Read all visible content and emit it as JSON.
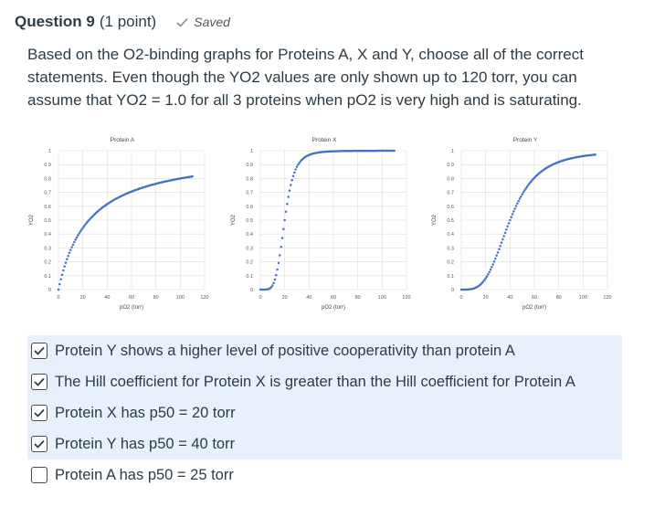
{
  "question": {
    "title": "Question 9",
    "points": "(1 point)",
    "saved_label": "Saved",
    "text": "Based on the O2-binding graphs for Proteins A, X and Y, choose all of the correct statements. Even though the YO2 values are only shown up to 120 torr, you can assume that YO2 = 1.0 for all 3 proteins when pO2 is very high and is saturating."
  },
  "chart_data": [
    {
      "type": "scatter",
      "title": "Protein A",
      "xlabel": "pO2 (torr)",
      "ylabel": "YO2",
      "xlim": [
        0,
        120
      ],
      "ylim": [
        0,
        1
      ],
      "xticks": [
        "0",
        "20",
        "40",
        "60",
        "80",
        "100",
        "120"
      ],
      "yticks": [
        "0",
        "0.1",
        "0.2",
        "0.3",
        "0.4",
        "0.5",
        "0.6",
        "0.7",
        "0.8",
        "0.9",
        "1"
      ],
      "grid": true,
      "p50": 25,
      "hill_n": 1,
      "x_max": 110
    },
    {
      "type": "scatter",
      "title": "Protein X",
      "xlabel": "pO2 (torr)",
      "ylabel": "YO2",
      "xlim": [
        0,
        120
      ],
      "ylim": [
        0,
        1
      ],
      "xticks": [
        "0",
        "20",
        "40",
        "60",
        "80",
        "100",
        "120"
      ],
      "yticks": [
        "0",
        "0.1",
        "0.2",
        "0.3",
        "0.4",
        "0.5",
        "0.6",
        "0.7",
        "0.8",
        "0.9",
        "1"
      ],
      "grid": true,
      "p50": 20,
      "hill_n": 5,
      "x_max": 110
    },
    {
      "type": "scatter",
      "title": "Protein Y",
      "xlabel": "pO2 (torr)",
      "ylabel": "YO2",
      "xlim": [
        0,
        120
      ],
      "ylim": [
        0,
        1
      ],
      "xticks": [
        "0",
        "20",
        "40",
        "60",
        "80",
        "100",
        "120"
      ],
      "yticks": [
        "0",
        "0.1",
        "0.2",
        "0.3",
        "0.4",
        "0.5",
        "0.6",
        "0.7",
        "0.8",
        "0.9",
        "1"
      ],
      "grid": true,
      "p50": 40,
      "hill_n": 3.5,
      "x_max": 110
    }
  ],
  "answers": [
    {
      "label": "Protein Y shows a higher level of positive cooperativity than protein A",
      "checked": true
    },
    {
      "label": "The Hill coefficient for Protein X is greater than the Hill coefficient for Protein A",
      "checked": true
    },
    {
      "label": "Protein X has p50 = 20 torr",
      "checked": true
    },
    {
      "label": "Protein Y has p50 = 40 torr",
      "checked": true
    },
    {
      "label": "Protein A has p50 = 25 torr",
      "checked": false
    }
  ],
  "colors": {
    "point": "#4472c4",
    "selected_bg": "#e8f1fb",
    "check": "#2d3b45"
  }
}
